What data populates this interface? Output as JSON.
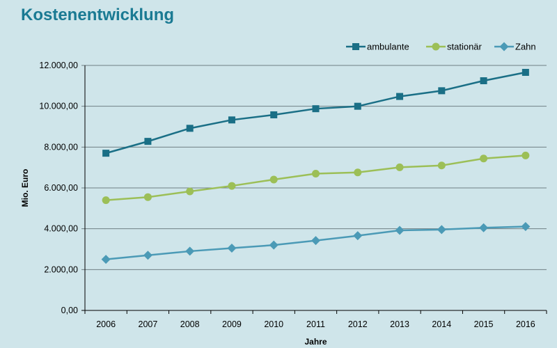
{
  "chart_data": {
    "type": "line",
    "title": "Kostenentwicklung",
    "xlabel": "Jahre",
    "ylabel": "Mio. Euro",
    "categories": [
      "2006",
      "2007",
      "2008",
      "2009",
      "2010",
      "2011",
      "2012",
      "2013",
      "2014",
      "2015",
      "2016"
    ],
    "ylim": [
      0,
      12000
    ],
    "yticks": [
      "0,00",
      "2.000,00",
      "4.000,00",
      "6.000,00",
      "8.000,00",
      "10.000,00",
      "12.000,00"
    ],
    "grid": true,
    "legend_position": "top-right",
    "series": [
      {
        "name": "ambulante",
        "marker": "square",
        "color": "#1a6f86",
        "values": [
          7700,
          8280,
          8920,
          9330,
          9580,
          9880,
          10000,
          10480,
          10760,
          11250,
          11660
        ]
      },
      {
        "name": "stationär",
        "marker": "circle",
        "color": "#9cbf57",
        "values": [
          5400,
          5550,
          5830,
          6100,
          6410,
          6700,
          6760,
          7010,
          7100,
          7440,
          7590
        ]
      },
      {
        "name": "Zahn",
        "marker": "diamond",
        "color": "#4b9ab6",
        "values": [
          2500,
          2700,
          2900,
          3050,
          3200,
          3420,
          3660,
          3920,
          3960,
          4050,
          4110
        ]
      }
    ]
  }
}
